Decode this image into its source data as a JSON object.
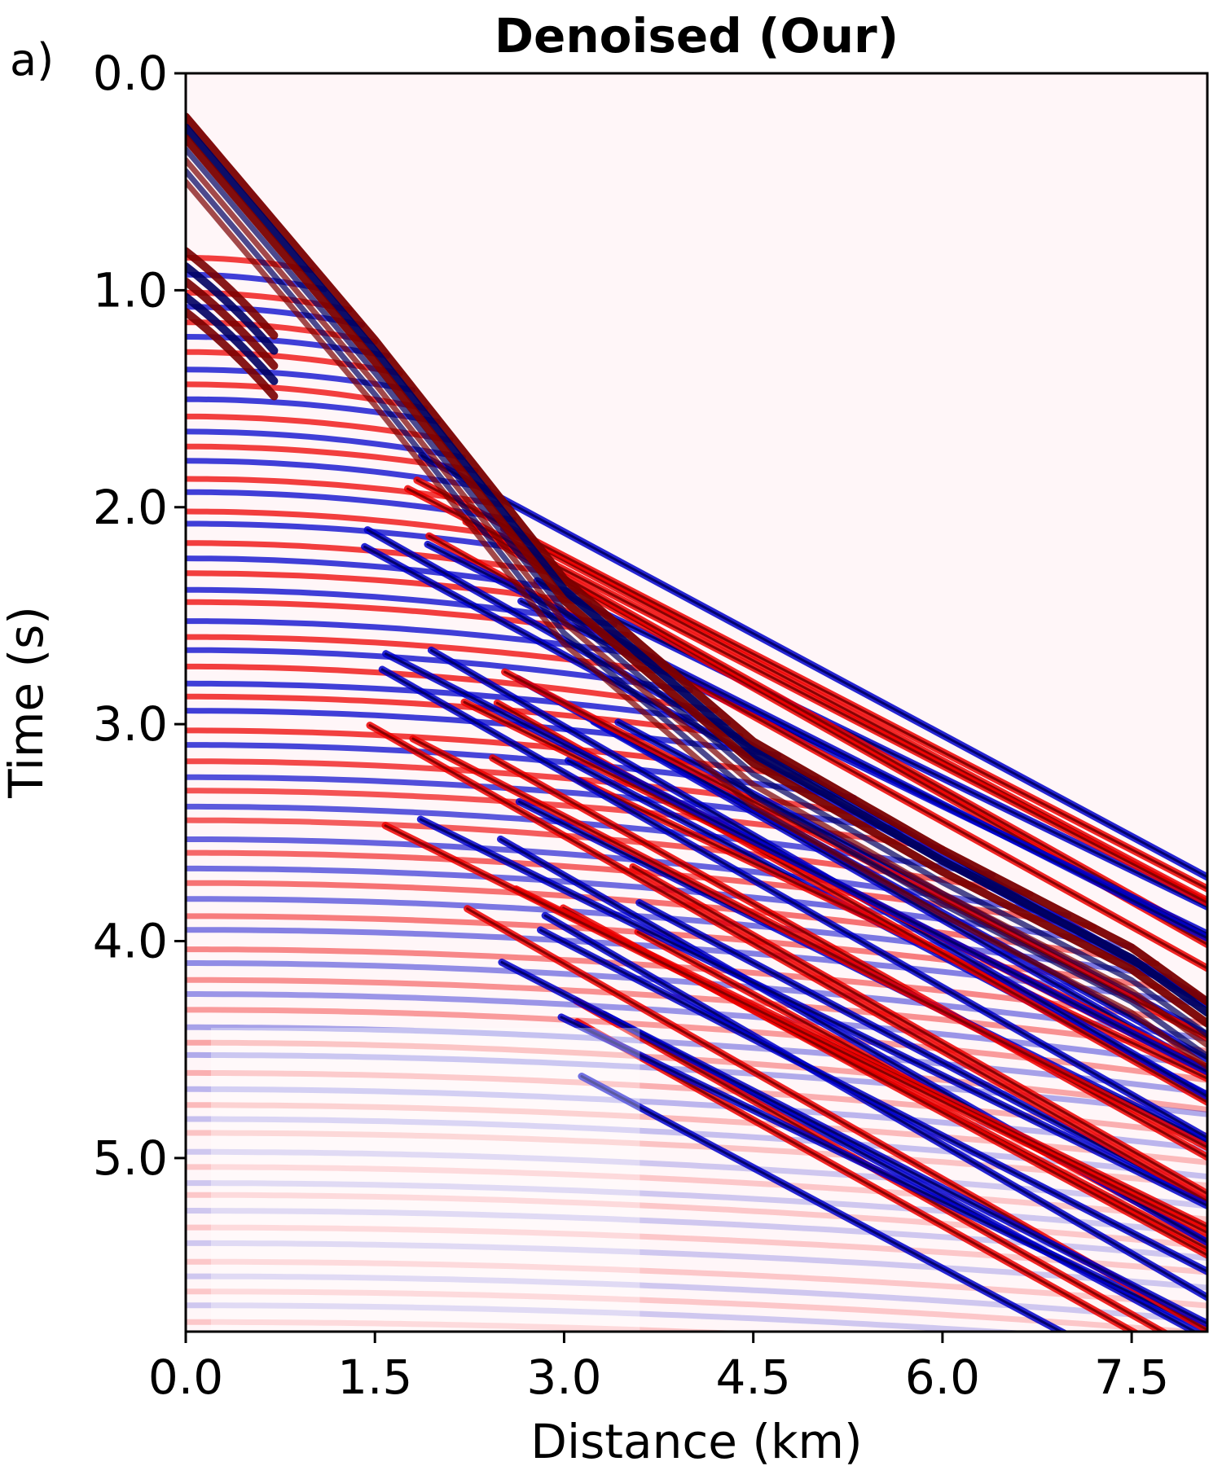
{
  "panel_label": "a)",
  "chart_data": {
    "type": "heatmap",
    "title": "Denoised (Our)",
    "xlabel": "Distance (km)",
    "ylabel": "Time (s)",
    "xlim": [
      0.0,
      8.1
    ],
    "ylim": [
      5.8,
      0.0
    ],
    "x_ticks": [
      0.0,
      1.5,
      3.0,
      4.5,
      6.0,
      7.5
    ],
    "x_tick_labels": [
      "0.0",
      "1.5",
      "3.0",
      "4.5",
      "6.0",
      "7.5"
    ],
    "y_ticks": [
      0.0,
      1.0,
      2.0,
      3.0,
      4.0,
      5.0
    ],
    "y_tick_labels": [
      "0.0",
      "1.0",
      "2.0",
      "3.0",
      "4.0",
      "5.0"
    ],
    "colormap": "seismic (blue-white-red)",
    "colors": {
      "positive": "#ee0000",
      "negative": "#0000cc",
      "zero": "#ffffff",
      "positive_dark": "#7a0000",
      "negative_dark": "#000060"
    },
    "first_break": [
      {
        "x": 0.0,
        "t": 0.17
      },
      {
        "x": 1.5,
        "t": 1.2
      },
      {
        "x": 3.0,
        "t": 2.3
      },
      {
        "x": 4.5,
        "t": 3.05
      },
      {
        "x": 6.0,
        "t": 3.55
      },
      {
        "x": 7.5,
        "t": 4.0
      },
      {
        "x": 8.1,
        "t": 4.25
      }
    ],
    "grid": false,
    "legend": false
  }
}
